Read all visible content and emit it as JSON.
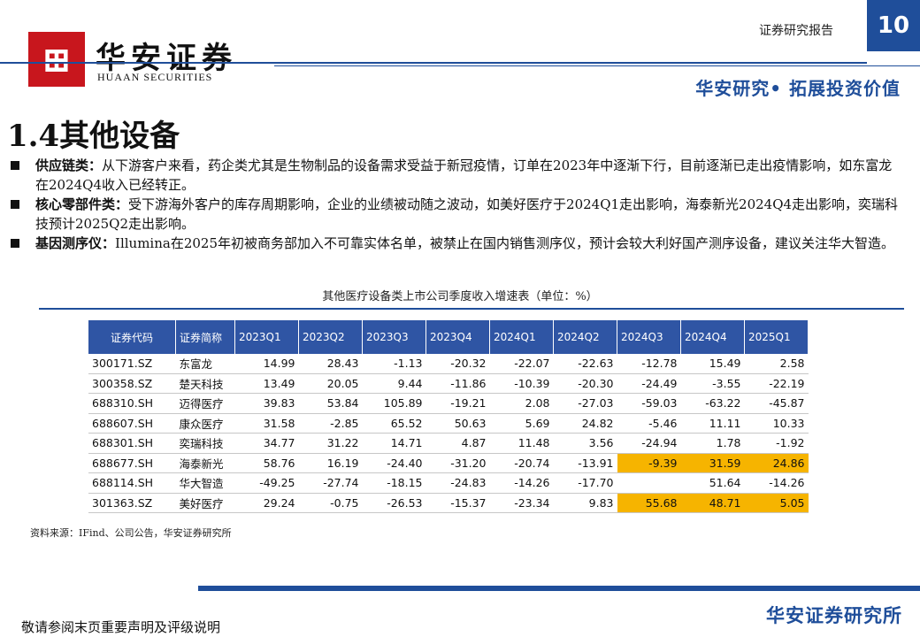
{
  "header": {
    "brand_cn": "华安证券",
    "brand_en": "HUAAN SECURITIES",
    "report_type": "证券研究报告",
    "page_number": "10",
    "slogan": "华安研究• 拓展投资价值",
    "accent_color": "#1f4e9a",
    "logo_color": "#c8161d"
  },
  "section": {
    "title": "1.4其他设备"
  },
  "bullets": [
    {
      "keyword": "供应链类：",
      "text": "从下游客户来看，药企类尤其是生物制品的设备需求受益于新冠疫情，订单在2023年中逐渐下行，目前逐渐已走出疫情影响，如东富龙在2024Q4收入已经转正。"
    },
    {
      "keyword": "核心零部件类：",
      "text": "受下游海外客户的库存周期影响，企业的业绩被动随之波动，如美好医疗于2024Q1走出影响，海泰新光2024Q4走出影响，奕瑞科技预计2025Q2走出影响。"
    },
    {
      "keyword": "基因测序仪：",
      "text": "Illumina在2025年初被商务部加入不可靠实体名单，被禁止在国内销售测序仪，预计会较大利好国产测序设备，建议关注华大智造。"
    }
  ],
  "table": {
    "caption": "其他医疗设备类上市公司季度收入增速表（单位：%）",
    "headers": [
      "证券代码",
      "证券简称",
      "2023Q1",
      "2023Q2",
      "2023Q3",
      "2023Q4",
      "2024Q1",
      "2024Q2",
      "2024Q3",
      "2024Q4",
      "2025Q1"
    ],
    "rows": [
      {
        "code": "300171.SZ",
        "name": "东富龙",
        "values": [
          "14.99",
          "28.43",
          "-1.13",
          "-20.32",
          "-22.07",
          "-22.63",
          "-12.78",
          "15.49",
          "2.58"
        ],
        "highlight": []
      },
      {
        "code": "300358.SZ",
        "name": "楚天科技",
        "values": [
          "13.49",
          "20.05",
          "9.44",
          "-11.86",
          "-10.39",
          "-20.30",
          "-24.49",
          "-3.55",
          "-22.19"
        ],
        "highlight": []
      },
      {
        "code": "688310.SH",
        "name": "迈得医疗",
        "values": [
          "39.83",
          "53.84",
          "105.89",
          "-19.21",
          "2.08",
          "-27.03",
          "-59.03",
          "-63.22",
          "-45.87"
        ],
        "highlight": []
      },
      {
        "code": "688607.SH",
        "name": "康众医疗",
        "values": [
          "31.58",
          "-2.85",
          "65.52",
          "50.63",
          "5.69",
          "24.82",
          "-5.46",
          "11.11",
          "10.33"
        ],
        "highlight": []
      },
      {
        "code": "688301.SH",
        "name": "奕瑞科技",
        "values": [
          "34.77",
          "31.22",
          "14.71",
          "4.87",
          "11.48",
          "3.56",
          "-24.94",
          "1.78",
          "-1.92"
        ],
        "highlight": []
      },
      {
        "code": "688677.SH",
        "name": "海泰新光",
        "values": [
          "58.76",
          "16.19",
          "-24.40",
          "-31.20",
          "-20.74",
          "-13.91",
          "-9.39",
          "31.59",
          "24.86"
        ],
        "highlight": [
          6,
          7,
          8
        ]
      },
      {
        "code": "688114.SH",
        "name": "华大智造",
        "values": [
          "-49.25",
          "-27.74",
          "-18.15",
          "-24.83",
          "-14.26",
          "-17.70",
          "",
          "51.64",
          "-14.26"
        ],
        "highlight": []
      },
      {
        "code": "301363.SZ",
        "name": "美好医疗",
        "values": [
          "29.24",
          "-0.75",
          "-26.53",
          "-15.37",
          "-23.34",
          "9.83",
          "55.68",
          "48.71",
          "5.05"
        ],
        "highlight": [
          6,
          7,
          8
        ]
      }
    ],
    "highlight_color": "#f6b400",
    "header_color": "#2f55a4"
  },
  "source": "资料来源：IFind、公司公告，华安证券研究所",
  "footer": {
    "disclaimer": "敬请参阅末页重要声明及评级说明",
    "brand": "华安证券研究所"
  }
}
